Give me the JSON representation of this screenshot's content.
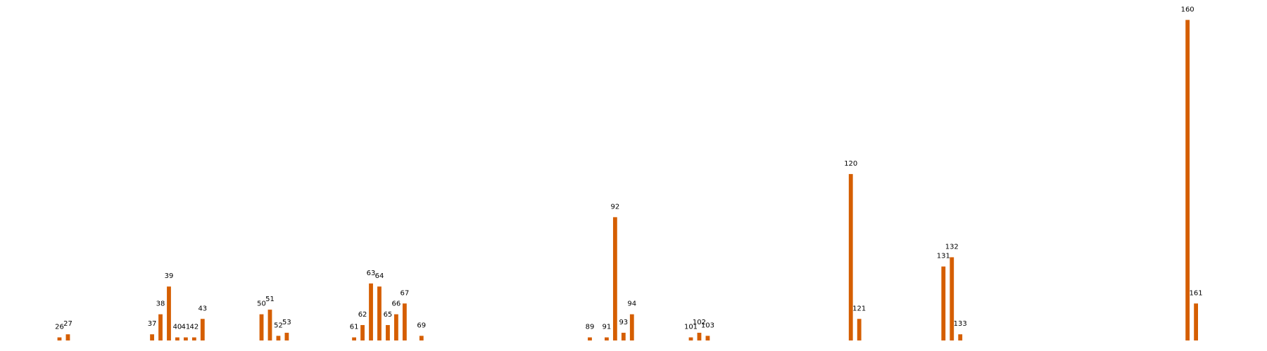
{
  "chart_data": {
    "type": "bar",
    "title": "",
    "xlabel": "",
    "ylabel": "",
    "grid": false,
    "legend": "none",
    "bar_color": "#d55e00",
    "ylim": [
      0,
      210
    ],
    "bars": [
      {
        "label": "26",
        "x": 26,
        "y": 2
      },
      {
        "label": "27",
        "x": 27,
        "y": 4
      },
      {
        "label": "37",
        "x": 37,
        "y": 4
      },
      {
        "label": "38",
        "x": 38,
        "y": 17
      },
      {
        "label": "39",
        "x": 39,
        "y": 35
      },
      {
        "label": "40",
        "x": 40,
        "y": 2
      },
      {
        "label": "41",
        "x": 41,
        "y": 2
      },
      {
        "label": "42",
        "x": 42,
        "y": 2
      },
      {
        "label": "43",
        "x": 43,
        "y": 14
      },
      {
        "label": "50",
        "x": 50,
        "y": 17
      },
      {
        "label": "51",
        "x": 51,
        "y": 20
      },
      {
        "label": "52",
        "x": 52,
        "y": 3
      },
      {
        "label": "53",
        "x": 53,
        "y": 5
      },
      {
        "label": "61",
        "x": 61,
        "y": 2
      },
      {
        "label": "62",
        "x": 62,
        "y": 10
      },
      {
        "label": "63",
        "x": 63,
        "y": 37
      },
      {
        "label": "64",
        "x": 64,
        "y": 35
      },
      {
        "label": "65",
        "x": 65,
        "y": 10
      },
      {
        "label": "66",
        "x": 66,
        "y": 17
      },
      {
        "label": "67",
        "x": 67,
        "y": 24
      },
      {
        "label": "69",
        "x": 69,
        "y": 3
      },
      {
        "label": "89",
        "x": 89,
        "y": 2
      },
      {
        "label": "91",
        "x": 91,
        "y": 2
      },
      {
        "label": "92",
        "x": 92,
        "y": 80
      },
      {
        "label": "93",
        "x": 93,
        "y": 5
      },
      {
        "label": "94",
        "x": 94,
        "y": 17
      },
      {
        "label": "101",
        "x": 101,
        "y": 2
      },
      {
        "label": "102",
        "x": 102,
        "y": 5
      },
      {
        "label": "103",
        "x": 103,
        "y": 3
      },
      {
        "label": "120",
        "x": 120,
        "y": 108
      },
      {
        "label": "121",
        "x": 121,
        "y": 14
      },
      {
        "label": "131",
        "x": 131,
        "y": 48
      },
      {
        "label": "132",
        "x": 132,
        "y": 54
      },
      {
        "label": "133",
        "x": 133,
        "y": 4
      },
      {
        "label": "160",
        "x": 160,
        "y": 208
      },
      {
        "label": "161",
        "x": 161,
        "y": 24
      }
    ]
  }
}
